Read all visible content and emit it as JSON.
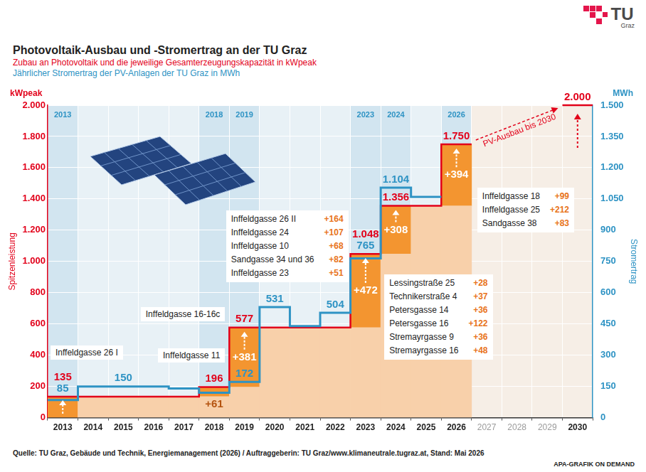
{
  "chart_data": {
    "type": "bar",
    "title": "Photovoltaik-Ausbau und -Stromertrag an der TU Graz",
    "subtitle": "Zubau an Photovoltaik und die jeweilige Gesamterzeugungskapazität in kWpeak",
    "subtitle2": "Jährlicher Stromertrag der PV-Anlagen der TU Graz in MWh",
    "ylabel": "Spitzenleistung",
    "yunit": "kWpeak",
    "y2label": "Stromertrag",
    "y2unit": "MWh",
    "categories": [
      "2013",
      "2014",
      "2015",
      "2016",
      "2017",
      "2018",
      "2019",
      "2020",
      "2021",
      "2022",
      "2023",
      "2024",
      "2025",
      "2026",
      "2027",
      "2028",
      "2029",
      "2030"
    ],
    "column_heads": [
      "2013",
      null,
      null,
      null,
      null,
      "2018",
      "2019",
      null,
      null,
      null,
      "2023",
      "2024",
      null,
      "2026",
      null,
      null,
      null,
      null
    ],
    "ylim": [
      0,
      2000
    ],
    "yticks": [
      0,
      200,
      400,
      600,
      800,
      {
        "value": 1000,
        "label": "1.000"
      },
      {
        "value": 1200,
        "label": "1.200"
      },
      {
        "value": 1400,
        "label": "1.400"
      },
      {
        "value": 1600,
        "label": "1.600"
      },
      {
        "value": 1800,
        "label": "1.800"
      },
      {
        "value": 2000,
        "label": "2.000"
      }
    ],
    "y2lim": [
      0,
      1500
    ],
    "y2ticks": [
      0,
      150,
      300,
      450,
      600,
      750,
      900,
      {
        "value": 1050,
        "label": "1.050"
      },
      {
        "value": 1200,
        "label": "1.200"
      },
      {
        "value": 1350,
        "label": "1.350"
      },
      {
        "value": 1500,
        "label": "1.500"
      }
    ],
    "stacked": true,
    "grid": true,
    "series": [
      {
        "type": "bar",
        "color": "#f8d0aa",
        "values": [
          null,
          135,
          135,
          135,
          135,
          135,
          196,
          577,
          577,
          577,
          577,
          1048,
          1356,
          1356,
          null,
          null,
          null,
          null
        ]
      },
      {
        "type": "bar",
        "color": "#f39530",
        "data_labels": true,
        "values": [
          135,
          null,
          null,
          null,
          null,
          61,
          381,
          null,
          null,
          null,
          472,
          308,
          null,
          394,
          null,
          null,
          null,
          null
        ],
        "value_labels": [
          null,
          null,
          null,
          null,
          null,
          "+61",
          "+381",
          null,
          null,
          null,
          "+472",
          "+308",
          null,
          "+394",
          null,
          null,
          null,
          null
        ]
      },
      {
        "type": "line",
        "line_style": "step",
        "color": "#e2001a",
        "data_labels": true,
        "values": [
          135,
          135,
          135,
          135,
          135,
          196,
          577,
          577,
          577,
          577,
          1048,
          1356,
          1356,
          1750,
          null,
          null,
          null,
          2000
        ],
        "value_labels": [
          "135",
          null,
          null,
          null,
          null,
          "196",
          "577",
          null,
          null,
          null,
          "1.048",
          "1.356",
          null,
          "1.750",
          null,
          null,
          null,
          "2.000"
        ]
      },
      {
        "type": "line",
        "line_style": "step",
        "axis": "y2",
        "color": "#2e93c4",
        "data_labels": true,
        "values": [
          85,
          150,
          150,
          150,
          140,
          120,
          172,
          531,
          440,
          504,
          765,
          1104,
          1060,
          null,
          null,
          null,
          null,
          null
        ],
        "value_labels": [
          "85",
          null,
          "150",
          null,
          null,
          null,
          "172",
          "531",
          null,
          "504",
          "765",
          "1.104",
          null,
          null,
          null,
          null,
          null,
          null
        ]
      }
    ],
    "annotations": [
      {
        "x": "2013",
        "text": "Inffeldgasse 26 I"
      },
      {
        "x": "2018",
        "text": "Inffeldgasse 11"
      },
      {
        "x": "2019",
        "text": "Inffeldgasse 16-16c"
      },
      {
        "x": "2023",
        "items": [
          {
            "text": "Inffeldgasse 26 II",
            "label": "+164"
          },
          {
            "text": "Inffeldgasse 24",
            "label": "+107"
          },
          {
            "text": "Inffeldgasse 10",
            "label": "+68"
          },
          {
            "text": "Sandgasse 34 und 36",
            "label": "+82"
          },
          {
            "text": "Inffeldgasse 23",
            "label": "+51"
          }
        ]
      },
      {
        "x": "2024",
        "items": [
          {
            "text": "Lessingstraße 25",
            "label": "+28"
          },
          {
            "text": "Technikerstraße 4",
            "label": "+37"
          },
          {
            "text": "Petersgasse 14",
            "label": "+36"
          },
          {
            "text": "Petersgasse 16",
            "label": "+122"
          },
          {
            "text": "Stremayrgasse 9",
            "label": "+36"
          },
          {
            "text": "Stremayrgasse 16",
            "label": "+48"
          }
        ]
      },
      {
        "x": "2026",
        "items": [
          {
            "text": "Inffeldgasse 18",
            "label": "+99"
          },
          {
            "text": "Inffeldgasse 25",
            "label": "+212"
          },
          {
            "text": "Sandgasse 38",
            "label": "+83"
          }
        ]
      }
    ],
    "trend": {
      "text": "PV-Ausbau bis 2030",
      "from": "2026",
      "to": "2030"
    },
    "logo": {
      "text": "TU",
      "subtext": "Graz"
    },
    "source": "Quelle: TU Graz, Gebäude und Technik, Energiemanagement (2026) / Auftraggeberin: TU Graz/www.klimaneutrale.tugraz.at, Stand: Mai 2026",
    "credit": "APA-GRAFIK ON DEMAND"
  }
}
